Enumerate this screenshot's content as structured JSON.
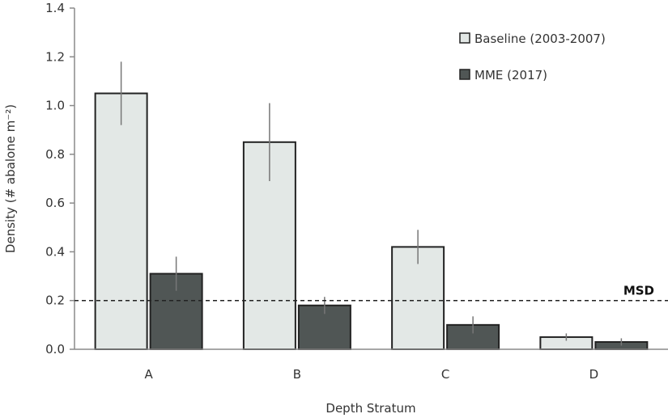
{
  "chart_data": {
    "type": "bar",
    "categories": [
      "A",
      "B",
      "C",
      "D"
    ],
    "series": [
      {
        "name": "Baseline (2003-2007)",
        "values": [
          1.05,
          0.85,
          0.42,
          0.05
        ],
        "errors": [
          0.13,
          0.16,
          0.07,
          0.015
        ],
        "color": "#e3e8e6"
      },
      {
        "name": "MME (2017)",
        "values": [
          0.31,
          0.18,
          0.1,
          0.03
        ],
        "errors": [
          0.07,
          0.035,
          0.035,
          0.015
        ],
        "color": "#505655"
      }
    ],
    "xlabel": "Depth Stratum",
    "ylabel": "Density (# abalone m⁻²)",
    "ylim": [
      0,
      1.4
    ],
    "yticks": [
      "0.0",
      "0.2",
      "0.4",
      "0.6",
      "0.8",
      "1.0",
      "1.2",
      "1.4"
    ],
    "grid": false,
    "legend": "top-right",
    "reference_line": {
      "value": 0.2,
      "label": "MSD",
      "style": "dashed"
    }
  }
}
